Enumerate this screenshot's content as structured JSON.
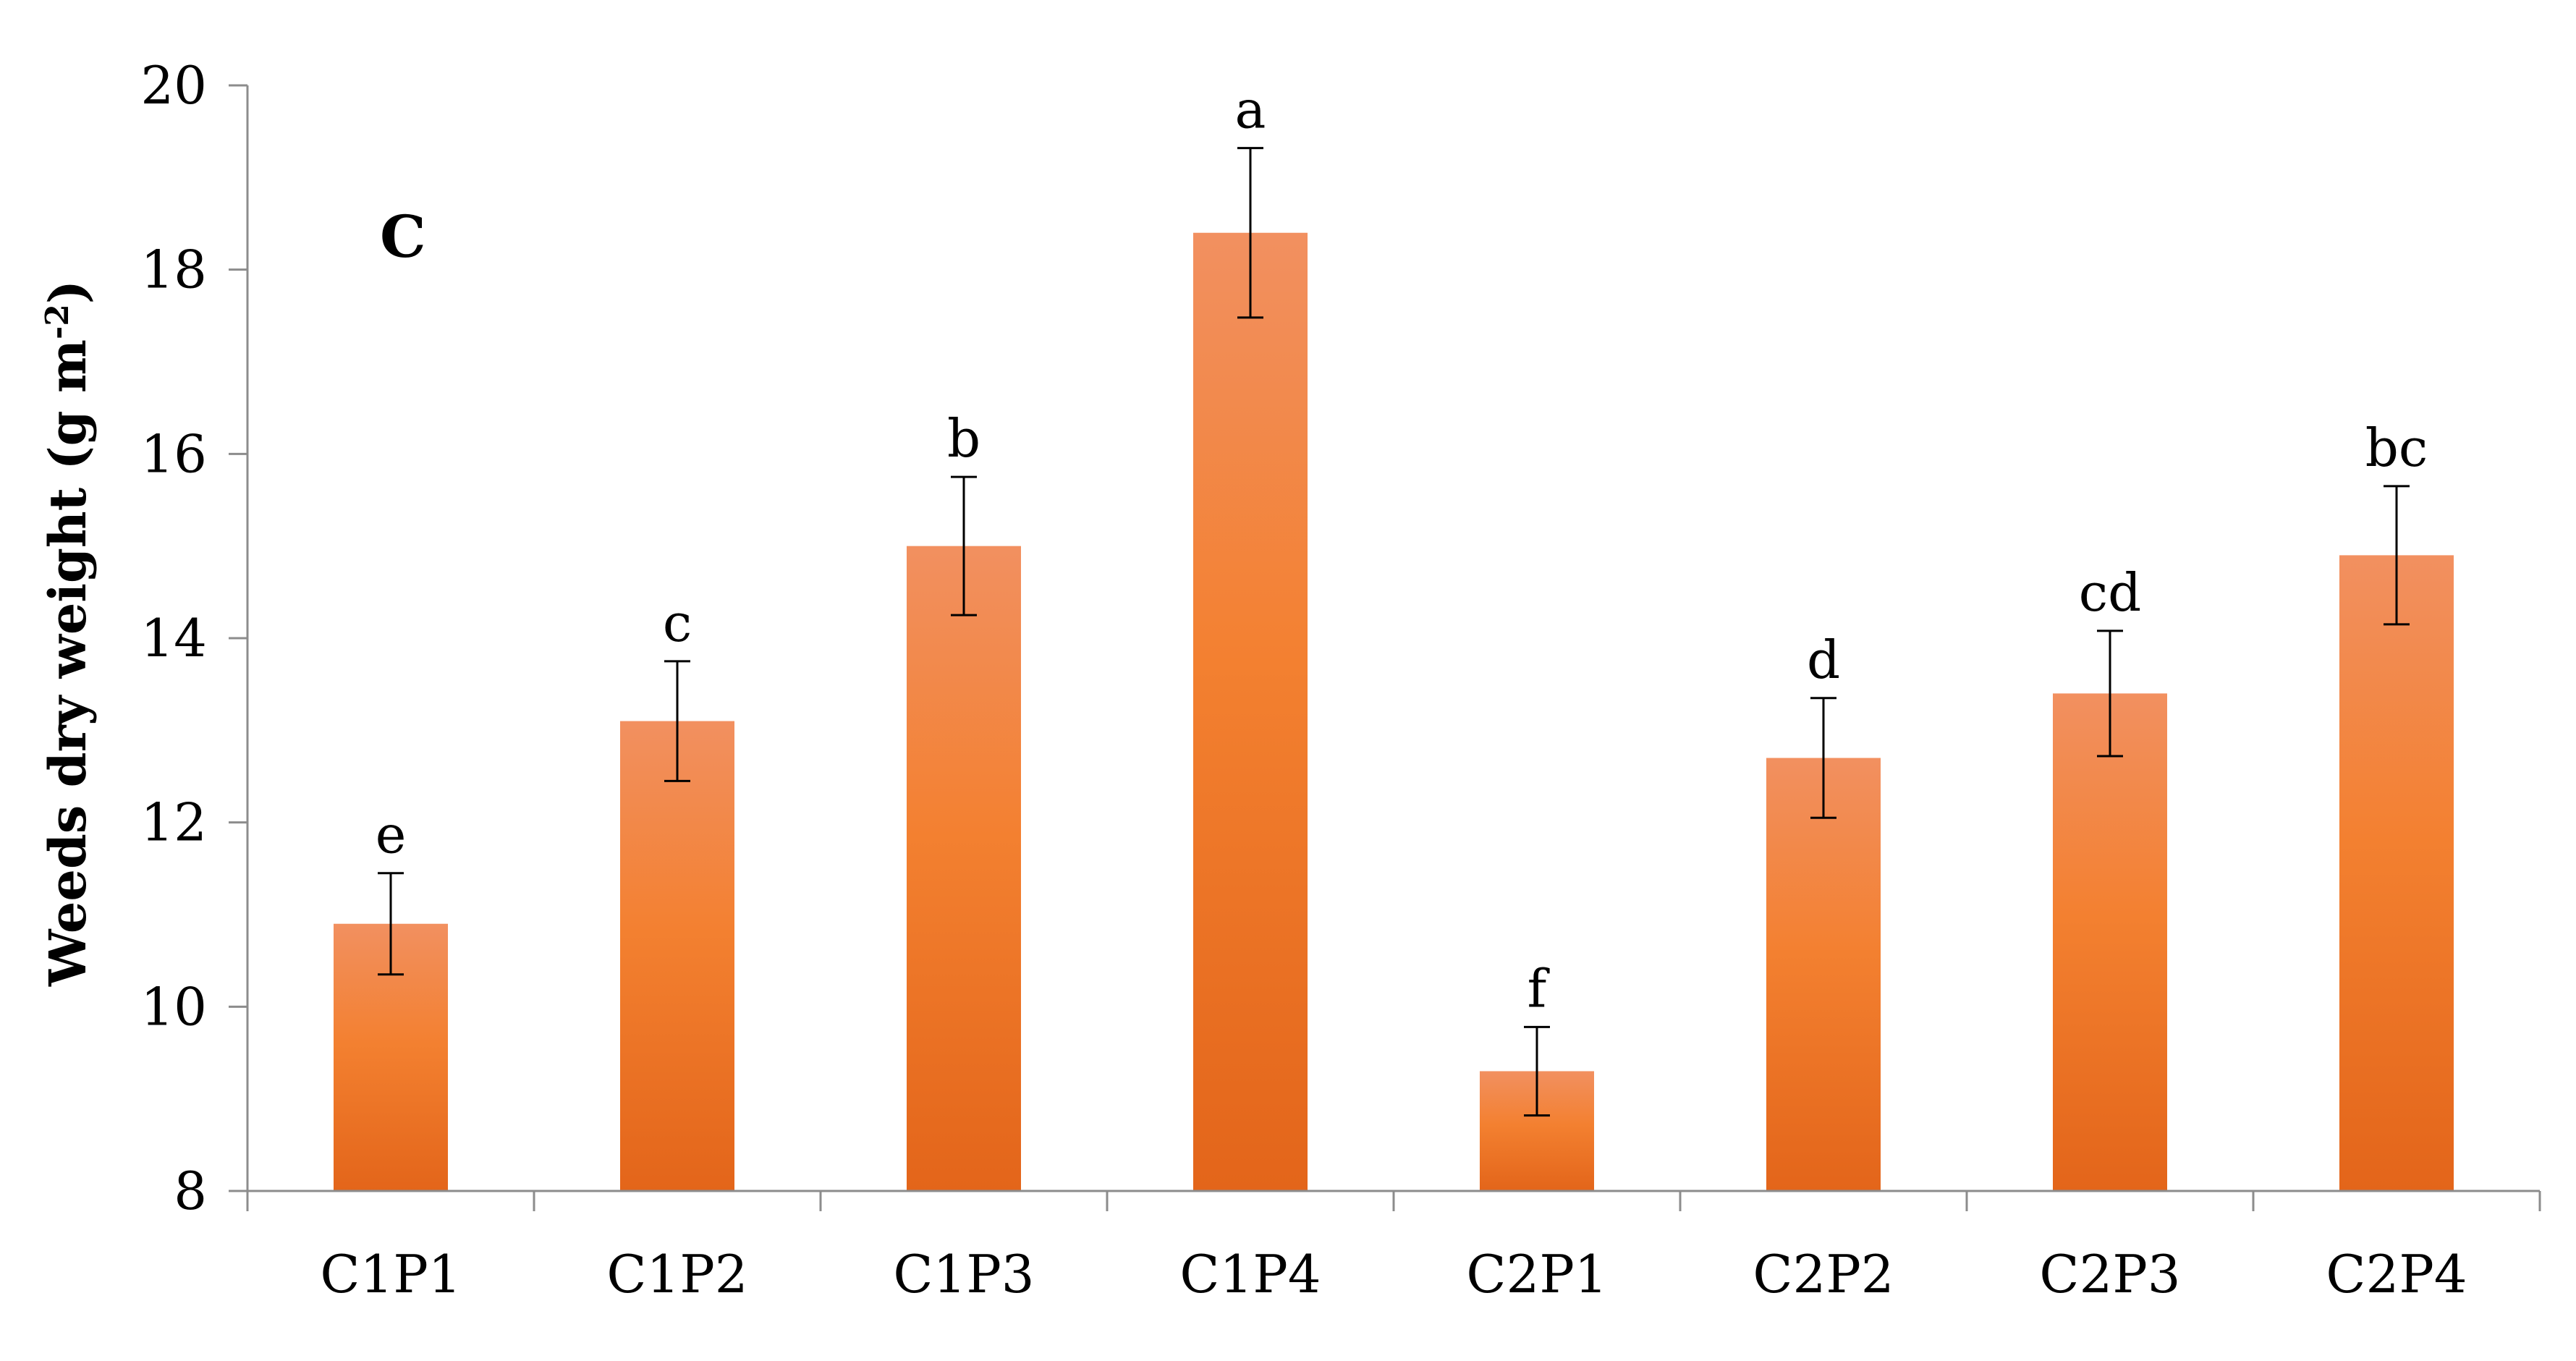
{
  "chart_data": {
    "type": "bar",
    "panel_label": "C",
    "ylabel": "Weeds dry weight (g m",
    "ylabel_superscript": "-2",
    "ylabel_suffix": ")",
    "xlabel": "",
    "ylim": [
      8,
      20
    ],
    "yticks": [
      8,
      10,
      12,
      14,
      16,
      18,
      20
    ],
    "grid": false,
    "categories": [
      "C1P1",
      "C1P2",
      "C1P3",
      "C1P4",
      "C2P1",
      "C2P2",
      "C2P3",
      "C2P4"
    ],
    "series": [
      {
        "values": [
          10.9,
          13.1,
          15.0,
          18.4,
          9.3,
          12.7,
          13.4,
          14.9
        ],
        "error": [
          0.55,
          0.65,
          0.75,
          0.92,
          0.48,
          0.65,
          0.68,
          0.75
        ],
        "significance": [
          "e",
          "c",
          "b",
          "a",
          "f",
          "d",
          "cd",
          "bc"
        ],
        "color": "#F07A2C"
      }
    ],
    "colors": {
      "bar_top": "#F29060",
      "bar_mid": "#F38030",
      "bar_bottom": "#E3651A",
      "axis": "#8C8C8C"
    }
  }
}
